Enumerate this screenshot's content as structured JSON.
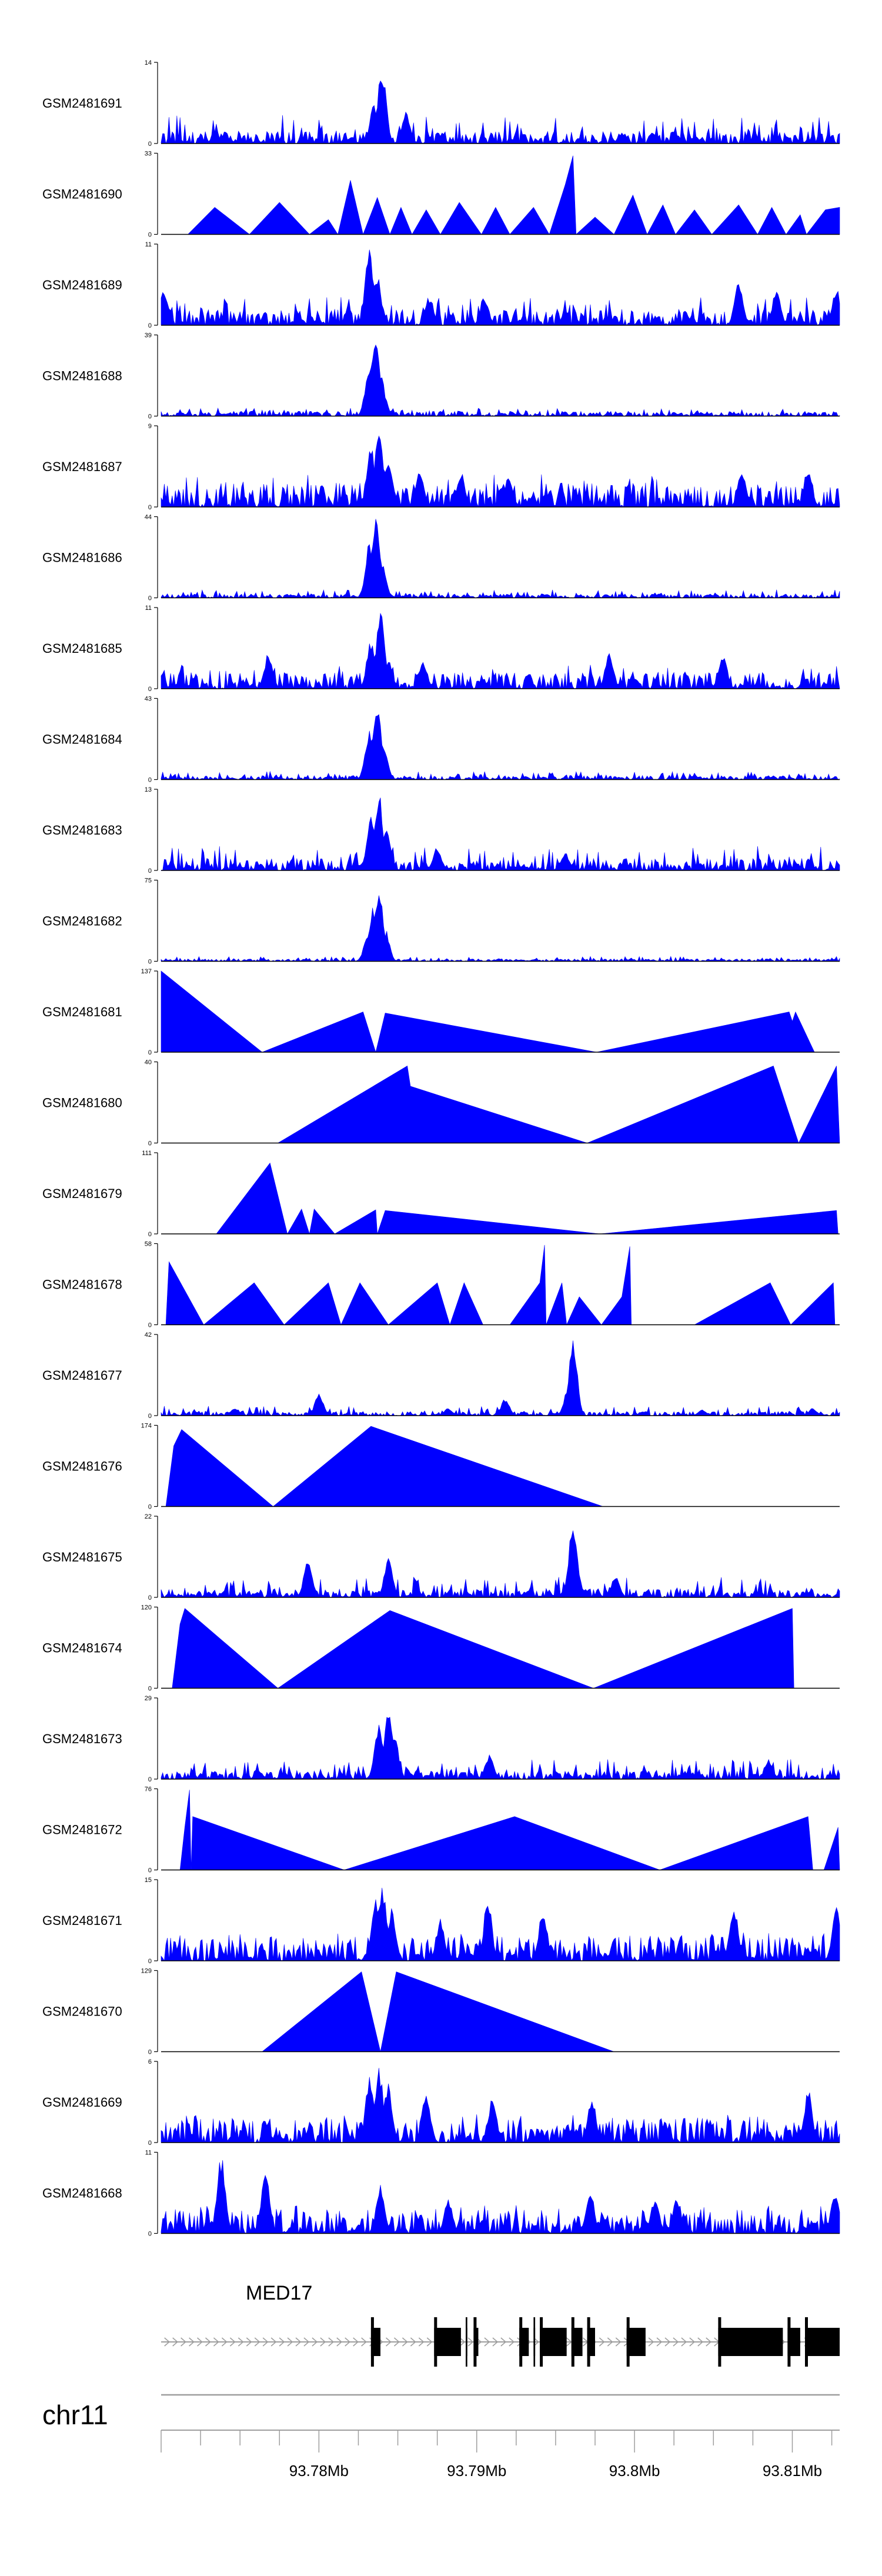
{
  "colors": {
    "signal": "#0000ff",
    "axis": "#000000",
    "ideogram": "#9e9e9e",
    "gene": "#000000",
    "intron": "#9e9e9e"
  },
  "chart_data": {
    "type": "area",
    "title": "",
    "xlabel": "",
    "ylabel": "",
    "genome": {
      "chromosome": "chr11",
      "xlim": [
        93770000,
        93813000
      ],
      "ticks": [
        93780000,
        93790000,
        93800000,
        93810000
      ],
      "tick_labels": [
        "93.78Mb",
        "93.79Mb",
        "93.8Mb",
        "93.81Mb"
      ]
    },
    "gene": {
      "name": "MED17",
      "strand": "+",
      "exons": [
        [
          93783300,
          93783900
        ],
        [
          93787300,
          93789000
        ],
        [
          93789300,
          93789400
        ],
        [
          93789800,
          93790100
        ],
        [
          93792700,
          93793300
        ],
        [
          93793600,
          93793700
        ],
        [
          93794000,
          93795700
        ],
        [
          93796000,
          93796700
        ],
        [
          93797000,
          93797500
        ],
        [
          93799500,
          93800700
        ],
        [
          93805300,
          93809400
        ],
        [
          93809700,
          93810500
        ],
        [
          93810800,
          93813000
        ]
      ]
    },
    "series": [
      {
        "name": "GSM2481691",
        "ymax": 14,
        "style": "dense",
        "peaks": [
          [
            93784000,
            13.8
          ],
          [
            93785500,
            5.5
          ],
          [
            93783500,
            7
          ]
        ],
        "base": 0.15,
        "noise": 0.35
      },
      {
        "name": "GSM2481690",
        "ymax": 33,
        "style": "sparse",
        "points": [
          [
            93771700,
            0
          ],
          [
            93773400,
            11
          ],
          [
            93775600,
            0
          ],
          [
            93777500,
            13
          ],
          [
            93779400,
            0
          ],
          [
            93780600,
            6
          ],
          [
            93781200,
            0
          ],
          [
            93782000,
            22
          ],
          [
            93782800,
            0
          ],
          [
            93783700,
            15
          ],
          [
            93784500,
            0
          ],
          [
            93785200,
            11
          ],
          [
            93785900,
            0
          ],
          [
            93786800,
            10
          ],
          [
            93787700,
            0
          ],
          [
            93788900,
            13
          ],
          [
            93790300,
            0
          ],
          [
            93791200,
            11
          ],
          [
            93792100,
            0
          ],
          [
            93793600,
            11
          ],
          [
            93794600,
            0
          ],
          [
            93795600,
            20
          ],
          [
            93796100,
            32
          ],
          [
            93796300,
            0
          ],
          [
            93797500,
            7
          ],
          [
            93798700,
            0
          ],
          [
            93799900,
            16
          ],
          [
            93800800,
            0
          ],
          [
            93801800,
            12
          ],
          [
            93802600,
            0
          ],
          [
            93803800,
            10
          ],
          [
            93804900,
            0
          ],
          [
            93806600,
            12
          ],
          [
            93807800,
            0
          ],
          [
            93808700,
            11
          ],
          [
            93809600,
            0
          ],
          [
            93810500,
            8
          ],
          [
            93810900,
            0
          ],
          [
            93812100,
            10
          ],
          [
            93813000,
            11
          ]
        ]
      },
      {
        "name": "GSM2481689",
        "ymax": 11,
        "style": "dense",
        "peaks": [
          [
            93783200,
            10.8
          ],
          [
            93783700,
            7
          ],
          [
            93787000,
            4
          ],
          [
            93790500,
            4
          ],
          [
            93806600,
            6
          ],
          [
            93809000,
            5
          ],
          [
            93812800,
            5
          ],
          [
            93770200,
            5
          ]
        ],
        "base": 0.2,
        "noise": 0.35
      },
      {
        "name": "GSM2481688",
        "ymax": 39,
        "style": "dense",
        "peaks": [
          [
            93783600,
            38
          ],
          [
            93783200,
            27
          ],
          [
            93784000,
            15
          ],
          [
            93783900,
            22
          ]
        ],
        "base": 0.06,
        "noise": 0.1
      },
      {
        "name": "GSM2481687",
        "ymax": 9,
        "style": "dense",
        "peaks": [
          [
            93783800,
            8.5
          ],
          [
            93783300,
            7
          ],
          [
            93784400,
            6
          ],
          [
            93786400,
            4
          ],
          [
            93789000,
            4
          ],
          [
            93792000,
            3.5
          ],
          [
            93806800,
            4
          ],
          [
            93811000,
            4
          ]
        ],
        "base": 0.3,
        "noise": 0.4
      },
      {
        "name": "GSM2481686",
        "ymax": 44,
        "style": "dense",
        "peaks": [
          [
            93783600,
            43
          ],
          [
            93783200,
            30
          ],
          [
            93784000,
            20
          ]
        ],
        "base": 0.05,
        "noise": 0.1
      },
      {
        "name": "GSM2481685",
        "ymax": 11,
        "style": "dense",
        "peaks": [
          [
            93783900,
            10.6
          ],
          [
            93783300,
            7
          ],
          [
            93784400,
            4
          ],
          [
            93776800,
            5
          ],
          [
            93786600,
            4
          ],
          [
            93798400,
            5
          ],
          [
            93805600,
            5
          ]
        ],
        "base": 0.2,
        "noise": 0.3
      },
      {
        "name": "GSM2481684",
        "ymax": 43,
        "style": "dense",
        "peaks": [
          [
            93783700,
            42
          ],
          [
            93783200,
            28
          ],
          [
            93784100,
            18
          ]
        ],
        "base": 0.05,
        "noise": 0.1
      },
      {
        "name": "GSM2481683",
        "ymax": 13,
        "style": "dense",
        "peaks": [
          [
            93783800,
            12.6
          ],
          [
            93783300,
            9
          ],
          [
            93784300,
            7
          ],
          [
            93787500,
            4
          ],
          [
            93795600,
            3
          ]
        ],
        "base": 0.15,
        "noise": 0.3
      },
      {
        "name": "GSM2481682",
        "ymax": 75,
        "style": "dense",
        "peaks": [
          [
            93783800,
            74
          ],
          [
            93783400,
            50
          ],
          [
            93784200,
            30
          ],
          [
            93783100,
            25
          ]
        ],
        "base": 0.03,
        "noise": 0.06
      },
      {
        "name": "GSM2481681",
        "ymax": 137,
        "style": "sparse",
        "points": [
          [
            93770000,
            0
          ],
          [
            93770000,
            137
          ],
          [
            93776400,
            0
          ],
          [
            93782800,
            68
          ],
          [
            93783600,
            0
          ],
          [
            93784200,
            66
          ],
          [
            93797600,
            0
          ],
          [
            93809800,
            68
          ],
          [
            93810000,
            52
          ],
          [
            93810200,
            68
          ],
          [
            93811400,
            0
          ]
        ]
      },
      {
        "name": "GSM2481680",
        "ymax": 40,
        "style": "sparse",
        "points": [
          [
            93777400,
            0
          ],
          [
            93785600,
            38
          ],
          [
            93785800,
            28
          ],
          [
            93797000,
            0
          ],
          [
            93808800,
            38
          ],
          [
            93810400,
            0
          ],
          [
            93812800,
            38
          ],
          [
            93813000,
            0
          ]
        ]
      },
      {
        "name": "GSM2481679",
        "ymax": 111,
        "style": "sparse",
        "points": [
          [
            93773500,
            0
          ],
          [
            93776900,
            97
          ],
          [
            93778000,
            0
          ],
          [
            93778900,
            34
          ],
          [
            93779400,
            0
          ],
          [
            93779700,
            34
          ],
          [
            93781000,
            0
          ],
          [
            93783600,
            33
          ],
          [
            93783700,
            0
          ],
          [
            93784200,
            32
          ],
          [
            93797800,
            0
          ],
          [
            93812800,
            32
          ],
          [
            93812900,
            0
          ]
        ]
      },
      {
        "name": "GSM2481678",
        "ymax": 58,
        "style": "sparse",
        "points": [
          [
            93770300,
            0
          ],
          [
            93770500,
            45
          ],
          [
            93772700,
            0
          ],
          [
            93775900,
            30
          ],
          [
            93777800,
            0
          ],
          [
            93780600,
            30
          ],
          [
            93781400,
            0
          ],
          [
            93782600,
            30
          ],
          [
            93784400,
            0
          ],
          [
            93787500,
            30
          ],
          [
            93788300,
            0
          ],
          [
            93789200,
            30
          ],
          [
            93790400,
            0
          ],
          [
            93792100,
            0
          ],
          [
            93794000,
            30
          ],
          [
            93794300,
            57
          ],
          [
            93794400,
            0
          ],
          [
            93795400,
            30
          ],
          [
            93795700,
            0
          ],
          [
            93796500,
            20
          ],
          [
            93797900,
            0
          ],
          [
            93799200,
            20
          ],
          [
            93799700,
            56
          ],
          [
            93799800,
            0
          ],
          [
            93803800,
            0
          ],
          [
            93808600,
            30
          ],
          [
            93809900,
            0
          ],
          [
            93812600,
            30
          ],
          [
            93812700,
            0
          ]
        ]
      },
      {
        "name": "GSM2481677",
        "ymax": 42,
        "style": "dense",
        "peaks": [
          [
            93796100,
            41
          ],
          [
            93795800,
            15
          ],
          [
            93780000,
            12
          ],
          [
            93774700,
            4
          ],
          [
            93788200,
            4
          ],
          [
            93791800,
            9
          ],
          [
            93804300,
            3
          ],
          [
            93811300,
            4
          ]
        ],
        "base": 0.05,
        "noise": 0.12
      },
      {
        "name": "GSM2481676",
        "ymax": 174,
        "style": "sparse",
        "points": [
          [
            93770300,
            0
          ],
          [
            93770800,
            130
          ],
          [
            93771300,
            165
          ],
          [
            93777100,
            0
          ],
          [
            93783300,
            172
          ],
          [
            93798000,
            0
          ]
        ]
      },
      {
        "name": "GSM2481675",
        "ymax": 22,
        "style": "dense",
        "peaks": [
          [
            93796100,
            21.6
          ],
          [
            93784400,
            11
          ],
          [
            93779300,
            10
          ],
          [
            93796400,
            6
          ],
          [
            93798800,
            6
          ]
        ],
        "base": 0.1,
        "noise": 0.25
      },
      {
        "name": "GSM2481674",
        "ymax": 120,
        "style": "sparse",
        "points": [
          [
            93770700,
            0
          ],
          [
            93771200,
            95
          ],
          [
            93771500,
            118
          ],
          [
            93777400,
            0
          ],
          [
            93784500,
            115
          ],
          [
            93797400,
            0
          ],
          [
            93810000,
            118
          ],
          [
            93810100,
            0
          ],
          [
            93811700,
            0
          ]
        ]
      },
      {
        "name": "GSM2481673",
        "ymax": 29,
        "style": "dense",
        "peaks": [
          [
            93784400,
            28
          ],
          [
            93783800,
            20
          ],
          [
            93784800,
            15
          ],
          [
            93790800,
            9
          ],
          [
            93808500,
            7
          ]
        ],
        "base": 0.1,
        "noise": 0.25
      },
      {
        "name": "GSM2481672",
        "ymax": 76,
        "style": "sparse",
        "points": [
          [
            93771200,
            0
          ],
          [
            93771500,
            40
          ],
          [
            93771800,
            75
          ],
          [
            93771900,
            0
          ],
          [
            93772000,
            50
          ],
          [
            93781600,
            0
          ],
          [
            93792400,
            50
          ],
          [
            93801600,
            0
          ],
          [
            93811000,
            50
          ],
          [
            93811300,
            0
          ],
          [
            93812000,
            0
          ],
          [
            93812900,
            40
          ],
          [
            93813000,
            0
          ]
        ]
      },
      {
        "name": "GSM2481671",
        "ymax": 15,
        "style": "dense",
        "peaks": [
          [
            93784000,
            14.6
          ],
          [
            93783600,
            12
          ],
          [
            93784600,
            10
          ],
          [
            93787700,
            8
          ],
          [
            93790700,
            12
          ],
          [
            93794200,
            10
          ],
          [
            93806300,
            11
          ],
          [
            93812800,
            11
          ]
        ],
        "base": 0.3,
        "noise": 0.35
      },
      {
        "name": "GSM2481670",
        "ymax": 129,
        "style": "sparse",
        "points": [
          [
            93776400,
            0
          ],
          [
            93782700,
            127
          ],
          [
            93783900,
            0
          ],
          [
            93784900,
            127
          ],
          [
            93798700,
            0
          ]
        ]
      },
      {
        "name": "GSM2481669",
        "ymax": 6,
        "style": "dense",
        "peaks": [
          [
            93783800,
            5.8
          ],
          [
            93783200,
            5
          ],
          [
            93784400,
            4.5
          ],
          [
            93786800,
            4
          ],
          [
            93791000,
            3.5
          ],
          [
            93797300,
            3.5
          ],
          [
            93811000,
            4
          ]
        ],
        "base": 0.3,
        "noise": 0.35
      },
      {
        "name": "GSM2481668",
        "ymax": 11,
        "style": "dense",
        "peaks": [
          [
            93773800,
            10.8
          ],
          [
            93776600,
            9
          ],
          [
            93783900,
            7
          ],
          [
            93788200,
            5
          ],
          [
            93797200,
            6
          ],
          [
            93801300,
            5
          ],
          [
            93802700,
            5
          ],
          [
            93812700,
            6
          ]
        ],
        "base": 0.3,
        "noise": 0.35
      }
    ]
  }
}
